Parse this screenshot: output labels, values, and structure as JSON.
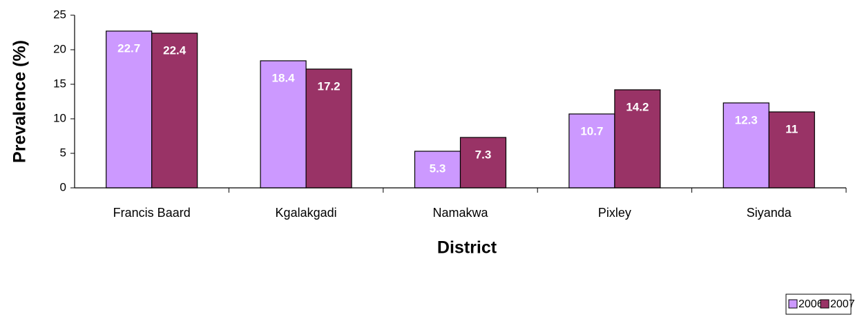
{
  "chart_data": {
    "type": "bar",
    "x_label": "District",
    "y_label": "Prevalence (%)",
    "categories": [
      "Francis Baard",
      "Kgalakgadi",
      "Namakwa",
      "Pixley",
      "Siyanda"
    ],
    "series": [
      {
        "name": "2006",
        "color": "#cc99ff",
        "values": [
          22.7,
          18.4,
          5.3,
          10.7,
          12.3
        ]
      },
      {
        "name": "2007",
        "color": "#993366",
        "values": [
          22.4,
          17.2,
          7.3,
          14.2,
          11
        ]
      }
    ],
    "ylim": [
      0,
      25
    ],
    "yticks": [
      0,
      5,
      10,
      15,
      20,
      25
    ],
    "grid": false,
    "legend": "bottom-right",
    "data_labels": true
  }
}
